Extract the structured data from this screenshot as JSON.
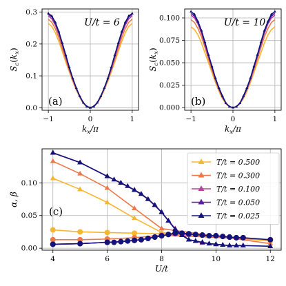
{
  "figure_title": "",
  "chart_data": [
    {
      "type": "line",
      "panel_label": "(a)",
      "annotation": "U/t = 6",
      "xlabel": "k_x/π",
      "ylabel": "S_c(k_x)",
      "xlim": [
        -1.15,
        1.15
      ],
      "ylim": [
        -0.008,
        0.31
      ],
      "x_ticks": [
        -1,
        0,
        1
      ],
      "x_tick_labels": [
        "−1",
        "0",
        "1"
      ],
      "y_ticks": [
        0.0,
        0.1,
        0.2,
        0.3
      ],
      "y_tick_labels": [
        "0.0",
        "0.1",
        "0.2",
        "0.3"
      ],
      "grid": true,
      "x": [
        -1.0,
        -0.917,
        -0.833,
        -0.75,
        -0.667,
        -0.583,
        -0.5,
        -0.417,
        -0.333,
        -0.25,
        -0.167,
        -0.083,
        0.0,
        0.083,
        0.167,
        0.25,
        0.333,
        0.417,
        0.5,
        0.583,
        0.667,
        0.75,
        0.833,
        0.917,
        1.0
      ],
      "series": [
        {
          "color": "#f7b631",
          "marker": "none",
          "values": [
            0.265,
            0.255,
            0.235,
            0.208,
            0.176,
            0.143,
            0.112,
            0.082,
            0.055,
            0.032,
            0.014,
            0.003,
            0.0,
            0.003,
            0.014,
            0.032,
            0.055,
            0.082,
            0.112,
            0.143,
            0.176,
            0.208,
            0.235,
            0.255,
            0.265
          ]
        },
        {
          "color": "#ec7a48",
          "marker": "none",
          "values": [
            0.278,
            0.268,
            0.248,
            0.22,
            0.186,
            0.151,
            0.117,
            0.086,
            0.058,
            0.034,
            0.015,
            0.003,
            0.0,
            0.003,
            0.015,
            0.034,
            0.058,
            0.086,
            0.117,
            0.151,
            0.186,
            0.22,
            0.248,
            0.268,
            0.278
          ]
        },
        {
          "color": "#b5449b",
          "marker": "none",
          "values": [
            0.288,
            0.279,
            0.259,
            0.231,
            0.196,
            0.158,
            0.122,
            0.089,
            0.06,
            0.035,
            0.015,
            0.004,
            0.0,
            0.004,
            0.015,
            0.035,
            0.06,
            0.089,
            0.122,
            0.158,
            0.196,
            0.231,
            0.259,
            0.279,
            0.288
          ]
        },
        {
          "color": "#5a1f9e",
          "marker": "none",
          "values": [
            0.293,
            0.285,
            0.265,
            0.236,
            0.201,
            0.163,
            0.125,
            0.091,
            0.061,
            0.036,
            0.016,
            0.004,
            0.0,
            0.004,
            0.016,
            0.036,
            0.061,
            0.091,
            0.125,
            0.163,
            0.201,
            0.236,
            0.265,
            0.285,
            0.293
          ]
        },
        {
          "color": "#13147a",
          "marker": "triangle",
          "values": [
            0.296,
            0.288,
            0.268,
            0.239,
            0.203,
            0.165,
            0.127,
            0.092,
            0.062,
            0.036,
            0.016,
            0.004,
            0.0,
            0.004,
            0.016,
            0.036,
            0.062,
            0.092,
            0.127,
            0.165,
            0.203,
            0.239,
            0.268,
            0.288,
            0.296
          ]
        }
      ]
    },
    {
      "type": "line",
      "panel_label": "(b)",
      "annotation": "U/t = 10",
      "xlabel": "k_x/π",
      "ylabel": "S_c(k_x)",
      "xlim": [
        -1.15,
        1.15
      ],
      "ylim": [
        -0.003,
        0.11
      ],
      "x_ticks": [
        -1,
        0,
        1
      ],
      "x_tick_labels": [
        "−1",
        "0",
        "1"
      ],
      "y_ticks": [
        0.0,
        0.025,
        0.05,
        0.075,
        0.1
      ],
      "y_tick_labels": [
        "0.000",
        "0.025",
        "0.050",
        "0.075",
        "0.100"
      ],
      "grid": true,
      "x": [
        -1.0,
        -0.917,
        -0.833,
        -0.75,
        -0.667,
        -0.583,
        -0.5,
        -0.417,
        -0.333,
        -0.25,
        -0.167,
        -0.083,
        0.0,
        0.083,
        0.167,
        0.25,
        0.333,
        0.417,
        0.5,
        0.583,
        0.667,
        0.75,
        0.833,
        0.917,
        1.0
      ],
      "series": [
        {
          "color": "#f7b631",
          "marker": "none",
          "values": [
            0.09,
            0.087,
            0.081,
            0.072,
            0.061,
            0.05,
            0.039,
            0.028,
            0.018,
            0.01,
            0.004,
            0.001,
            0.0,
            0.001,
            0.004,
            0.01,
            0.018,
            0.028,
            0.039,
            0.05,
            0.061,
            0.072,
            0.081,
            0.087,
            0.09
          ]
        },
        {
          "color": "#ec7a48",
          "marker": "none",
          "values": [
            0.098,
            0.095,
            0.088,
            0.079,
            0.067,
            0.054,
            0.042,
            0.03,
            0.02,
            0.011,
            0.005,
            0.001,
            0.0,
            0.001,
            0.005,
            0.011,
            0.02,
            0.03,
            0.042,
            0.054,
            0.067,
            0.079,
            0.088,
            0.095,
            0.098
          ]
        },
        {
          "color": "#b5449b",
          "marker": "none",
          "values": [
            0.103,
            0.1,
            0.093,
            0.083,
            0.07,
            0.057,
            0.044,
            0.032,
            0.021,
            0.012,
            0.005,
            0.001,
            0.0,
            0.001,
            0.005,
            0.012,
            0.021,
            0.032,
            0.044,
            0.057,
            0.07,
            0.083,
            0.093,
            0.1,
            0.103
          ]
        },
        {
          "color": "#5a1f9e",
          "marker": "none",
          "values": [
            0.105,
            0.102,
            0.095,
            0.085,
            0.072,
            0.058,
            0.045,
            0.032,
            0.021,
            0.012,
            0.005,
            0.001,
            0.0,
            0.001,
            0.005,
            0.012,
            0.021,
            0.032,
            0.045,
            0.058,
            0.072,
            0.085,
            0.095,
            0.102,
            0.105
          ]
        },
        {
          "color": "#13147a",
          "marker": "triangle",
          "values": [
            0.107,
            0.104,
            0.096,
            0.086,
            0.073,
            0.059,
            0.046,
            0.033,
            0.022,
            0.013,
            0.005,
            0.001,
            0.0,
            0.001,
            0.005,
            0.013,
            0.022,
            0.033,
            0.046,
            0.059,
            0.073,
            0.086,
            0.096,
            0.104,
            0.107
          ]
        }
      ]
    },
    {
      "type": "line",
      "panel_label": "(c)",
      "xlabel": "U/t",
      "ylabel": "α, β",
      "xlim": [
        3.6,
        12.4
      ],
      "ylim": [
        -0.003,
        0.152
      ],
      "x_ticks": [
        4,
        6,
        8,
        10,
        12
      ],
      "x_tick_labels": [
        "4",
        "6",
        "8",
        "10",
        "12"
      ],
      "y_ticks": [
        0.0,
        0.05,
        0.1
      ],
      "y_tick_labels": [
        "0.00",
        "0.05",
        "0.10"
      ],
      "grid": true,
      "legend_position": "upper-right",
      "series": [
        {
          "name": "T/t = 0.500",
          "color": "#f7b631",
          "alpha": {
            "x": [
              4,
              5,
              6,
              7,
              8,
              12
            ],
            "y": [
              0.107,
              0.09,
              0.07,
              0.046,
              0.024,
              0.011
            ]
          },
          "beta": {
            "x": [
              4,
              5,
              6,
              7,
              8,
              12
            ],
            "y": [
              0.028,
              0.025,
              0.024,
              0.023,
              0.022,
              0.012
            ]
          }
        },
        {
          "name": "T/t = 0.300",
          "color": "#ec7a48",
          "alpha": {
            "x": [
              4,
              5,
              6,
              7,
              8,
              12
            ],
            "y": [
              0.133,
              0.114,
              0.092,
              0.061,
              0.03,
              0.007
            ]
          },
          "beta": {
            "x": [
              4,
              5,
              6,
              7,
              8,
              12
            ],
            "y": [
              0.013,
              0.013,
              0.014,
              0.016,
              0.02,
              0.013
            ]
          }
        },
        {
          "name": "T/t = 0.100",
          "color": "#b5449b",
          "alpha": {
            "x": [
              4.0,
              5.0,
              6.0,
              7.0,
              7.5,
              8.0,
              8.5,
              9.0,
              9.5,
              10.0,
              10.5,
              11.0
            ],
            "y": [
              0.146,
              0.131,
              0.11,
              0.089,
              0.075,
              0.055,
              0.03,
              0.013,
              0.008,
              0.006,
              0.004,
              0.004
            ]
          },
          "beta": {
            "x": [
              4.0,
              5.0,
              6.0,
              7.0,
              7.5,
              8.0,
              8.5,
              9.0,
              9.5,
              10.0,
              10.5,
              11.0
            ],
            "y": [
              0.006,
              0.007,
              0.009,
              0.012,
              0.015,
              0.019,
              0.022,
              0.021,
              0.02,
              0.019,
              0.017,
              0.016
            ]
          }
        },
        {
          "name": "T/t = 0.050",
          "color": "#5a1f9e",
          "alpha": {
            "x": [
              4.0,
              5.0,
              6.0,
              6.5,
              7.0,
              7.25,
              7.5,
              7.75,
              8.0,
              8.25,
              8.5,
              8.75,
              9.0,
              9.25,
              9.5,
              9.75,
              10.0,
              10.25,
              10.5,
              10.75,
              11.0
            ],
            "y": [
              0.146,
              0.131,
              0.11,
              0.1,
              0.089,
              0.083,
              0.075,
              0.066,
              0.055,
              0.042,
              0.029,
              0.02,
              0.013,
              0.011,
              0.009,
              0.007,
              0.006,
              0.005,
              0.004,
              0.004,
              0.004
            ]
          },
          "beta": {
            "x": [
              4.0,
              5.0,
              6.0,
              6.5,
              7.0,
              7.25,
              7.5,
              7.75,
              8.0,
              8.25,
              8.5,
              8.75,
              9.0,
              9.25,
              9.5,
              9.75,
              10.0,
              10.25,
              10.5,
              10.75,
              11.0
            ],
            "y": [
              0.006,
              0.007,
              0.009,
              0.01,
              0.012,
              0.013,
              0.015,
              0.017,
              0.019,
              0.021,
              0.023,
              0.023,
              0.022,
              0.021,
              0.02,
              0.019,
              0.019,
              0.018,
              0.017,
              0.016,
              0.016
            ]
          }
        },
        {
          "name": "T/t = 0.025",
          "color": "#13147a",
          "alpha": {
            "x": [
              4.0,
              5.0,
              6.0,
              6.25,
              6.5,
              6.75,
              7.0,
              7.25,
              7.5,
              7.75,
              8.0,
              8.25,
              8.5,
              8.75,
              9.0,
              9.25,
              9.5,
              9.75,
              10.0,
              10.25,
              10.5,
              10.75,
              11.0,
              12.0
            ],
            "y": [
              0.146,
              0.131,
              0.11,
              0.105,
              0.1,
              0.095,
              0.089,
              0.083,
              0.075,
              0.066,
              0.055,
              0.042,
              0.029,
              0.02,
              0.013,
              0.011,
              0.009,
              0.007,
              0.006,
              0.005,
              0.004,
              0.004,
              0.004,
              0.003
            ]
          },
          "beta": {
            "x": [
              4.0,
              5.0,
              6.0,
              6.25,
              6.5,
              6.75,
              7.0,
              7.25,
              7.5,
              7.75,
              8.0,
              8.25,
              8.5,
              8.75,
              9.0,
              9.25,
              9.5,
              9.75,
              10.0,
              10.25,
              10.5,
              10.75,
              11.0,
              12.0
            ],
            "y": [
              0.006,
              0.007,
              0.009,
              0.009,
              0.01,
              0.011,
              0.012,
              0.013,
              0.015,
              0.017,
              0.019,
              0.021,
              0.023,
              0.023,
              0.022,
              0.021,
              0.02,
              0.019,
              0.019,
              0.018,
              0.017,
              0.016,
              0.016,
              0.013
            ]
          }
        }
      ]
    }
  ]
}
